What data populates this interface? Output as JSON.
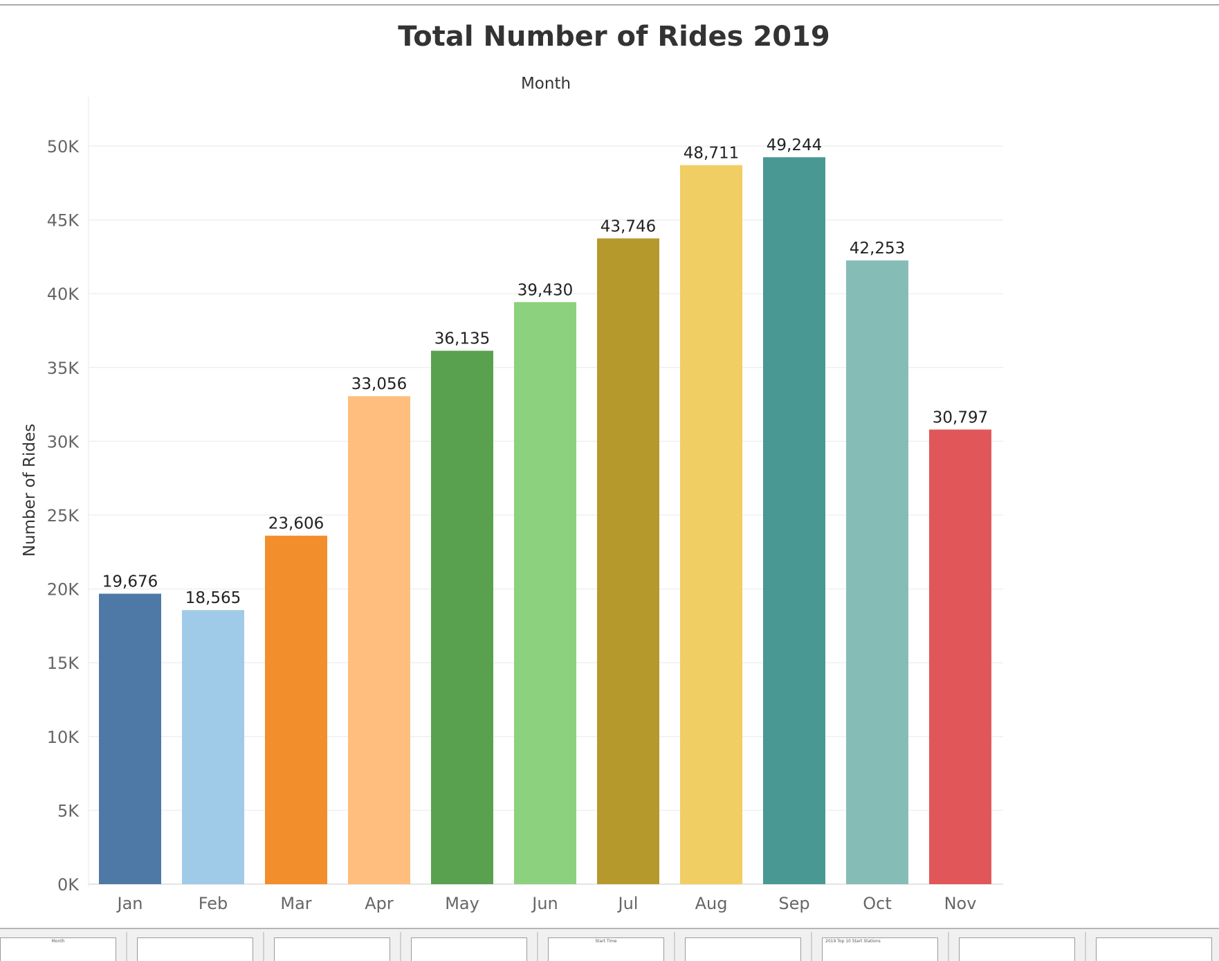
{
  "chart_data": {
    "type": "bar",
    "title": "Total Number of Rides 2019",
    "x_header": "Month",
    "ylabel": "Number of Rides",
    "categories": [
      "Jan",
      "Feb",
      "Mar",
      "Apr",
      "May",
      "Jun",
      "Jul",
      "Aug",
      "Sep",
      "Oct",
      "Nov"
    ],
    "values": [
      19676,
      18565,
      23606,
      33056,
      36135,
      39430,
      43746,
      48711,
      49244,
      42253,
      30797
    ],
    "value_labels": [
      "19,676",
      "18,565",
      "23,606",
      "33,056",
      "36,135",
      "39,430",
      "43,746",
      "48,711",
      "49,244",
      "42,253",
      "30,797"
    ],
    "colors": [
      "#4e79a7",
      "#a0cbe8",
      "#f28e2b",
      "#ffbe7d",
      "#59a14f",
      "#8cd17d",
      "#b6992d",
      "#f1ce63",
      "#499894",
      "#86bcb6",
      "#e15759"
    ],
    "ylim": [
      0,
      53000
    ],
    "yticks": [
      0,
      5000,
      10000,
      15000,
      20000,
      25000,
      30000,
      35000,
      40000,
      45000,
      50000
    ],
    "ytick_labels": [
      "0K",
      "5K",
      "10K",
      "15K",
      "20K",
      "25K",
      "30K",
      "35K",
      "40K",
      "45K",
      "50K"
    ],
    "grid": true,
    "legend": "none"
  },
  "thumbnails": [
    {
      "text": "Month"
    },
    {
      "text": ""
    },
    {
      "text": ""
    },
    {
      "text": ""
    },
    {
      "text": "Start Time"
    },
    {
      "text": ""
    },
    {
      "text": "2019 Top 10 Start Stations"
    },
    {
      "text": ""
    },
    {
      "text": ""
    }
  ]
}
